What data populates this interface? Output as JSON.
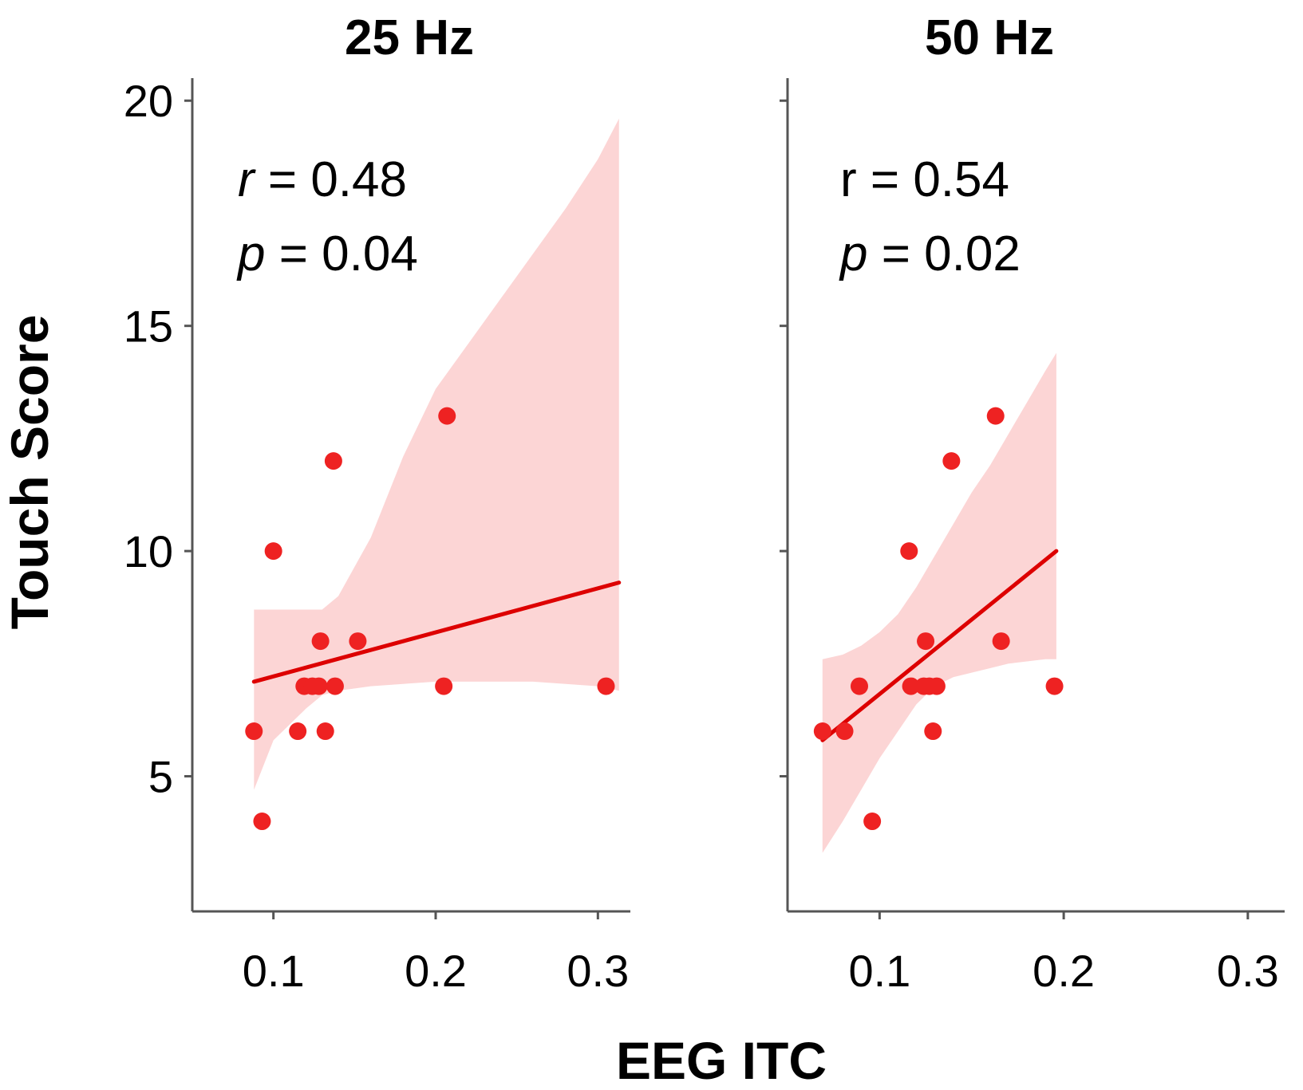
{
  "chart_data": [
    {
      "type": "scatter",
      "title": "25 Hz",
      "xlabel": "EEG ITC",
      "ylabel": "Touch Score",
      "xlim": [
        0.05,
        0.32
      ],
      "ylim": [
        2.0,
        20.5
      ],
      "x_ticks": [
        0.1,
        0.2,
        0.3
      ],
      "y_ticks": [
        5,
        10,
        15,
        20
      ],
      "x_tick_labels": [
        "0.1",
        "0.2",
        "0.3"
      ],
      "y_tick_labels": [
        "5",
        "10",
        "15",
        "20"
      ],
      "stats": {
        "r_symbol": "r",
        "r_text": " = 0.48",
        "p_symbol": "p",
        "p_text": " = 0.04"
      },
      "points": [
        {
          "x": 0.088,
          "y": 6
        },
        {
          "x": 0.093,
          "y": 4
        },
        {
          "x": 0.1,
          "y": 10
        },
        {
          "x": 0.115,
          "y": 6
        },
        {
          "x": 0.119,
          "y": 7
        },
        {
          "x": 0.124,
          "y": 7
        },
        {
          "x": 0.128,
          "y": 7
        },
        {
          "x": 0.129,
          "y": 8
        },
        {
          "x": 0.132,
          "y": 6
        },
        {
          "x": 0.137,
          "y": 12
        },
        {
          "x": 0.138,
          "y": 7
        },
        {
          "x": 0.152,
          "y": 8
        },
        {
          "x": 0.205,
          "y": 7
        },
        {
          "x": 0.207,
          "y": 13
        },
        {
          "x": 0.305,
          "y": 7
        }
      ],
      "fit_line": {
        "x": [
          0.088,
          0.313
        ],
        "y": [
          7.1,
          9.3
        ]
      },
      "confidence_band": {
        "x": [
          0.088,
          0.1,
          0.12,
          0.13,
          0.14,
          0.16,
          0.18,
          0.2,
          0.22,
          0.24,
          0.26,
          0.28,
          0.3,
          0.313
        ],
        "upper": [
          8.7,
          8.7,
          8.7,
          8.7,
          9.0,
          10.3,
          12.1,
          13.6,
          14.6,
          15.6,
          16.6,
          17.6,
          18.7,
          19.6
        ],
        "lower": [
          4.7,
          5.8,
          6.5,
          6.8,
          6.9,
          7.0,
          7.05,
          7.1,
          7.1,
          7.1,
          7.1,
          7.05,
          7.0,
          6.9
        ]
      },
      "colors": {
        "points": "#ee2222",
        "line": "#dd0000",
        "band": "#fcd5d5"
      }
    },
    {
      "type": "scatter",
      "title": "50 Hz",
      "xlabel": "EEG ITC",
      "ylabel": "Touch Score",
      "xlim": [
        0.05,
        0.32
      ],
      "ylim": [
        2.0,
        20.5
      ],
      "x_ticks": [
        0.1,
        0.2,
        0.3
      ],
      "y_ticks": [
        5,
        10,
        15,
        20
      ],
      "x_tick_labels": [
        "0.1",
        "0.2",
        "0.3"
      ],
      "y_tick_labels": [
        "5",
        "10",
        "15",
        "20"
      ],
      "stats": {
        "r_symbol": "r",
        "r_text": " = 0.54",
        "p_symbol": "p",
        "p_text": " = 0.02"
      },
      "points": [
        {
          "x": 0.069,
          "y": 6
        },
        {
          "x": 0.081,
          "y": 6
        },
        {
          "x": 0.089,
          "y": 7
        },
        {
          "x": 0.096,
          "y": 4
        },
        {
          "x": 0.116,
          "y": 10
        },
        {
          "x": 0.117,
          "y": 7
        },
        {
          "x": 0.124,
          "y": 7
        },
        {
          "x": 0.125,
          "y": 8
        },
        {
          "x": 0.127,
          "y": 7
        },
        {
          "x": 0.129,
          "y": 6
        },
        {
          "x": 0.131,
          "y": 7
        },
        {
          "x": 0.139,
          "y": 12
        },
        {
          "x": 0.163,
          "y": 13
        },
        {
          "x": 0.166,
          "y": 8
        },
        {
          "x": 0.195,
          "y": 7
        }
      ],
      "fit_line": {
        "x": [
          0.069,
          0.196
        ],
        "y": [
          5.8,
          10.0
        ]
      },
      "confidence_band": {
        "x": [
          0.069,
          0.08,
          0.09,
          0.1,
          0.11,
          0.12,
          0.13,
          0.14,
          0.15,
          0.16,
          0.17,
          0.18,
          0.19,
          0.196
        ],
        "upper": [
          7.6,
          7.7,
          7.9,
          8.2,
          8.6,
          9.2,
          9.9,
          10.6,
          11.3,
          11.9,
          12.6,
          13.3,
          14.0,
          14.4
        ],
        "lower": [
          3.3,
          4.0,
          4.7,
          5.4,
          6.0,
          6.6,
          7.0,
          7.2,
          7.3,
          7.4,
          7.5,
          7.55,
          7.6,
          7.6
        ]
      },
      "colors": {
        "points": "#ee2222",
        "line": "#dd0000",
        "band": "#fcd5d5"
      }
    }
  ],
  "shared": {
    "ylabel": "Touch Score",
    "xlabel": "EEG ITC"
  }
}
